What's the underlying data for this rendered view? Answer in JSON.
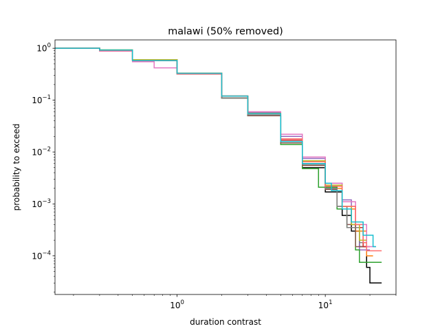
{
  "chart_data": {
    "type": "line",
    "title": "malawi (50% removed)",
    "xlabel": "duration contrast",
    "ylabel": "probability to exceed",
    "xscale": "log",
    "yscale": "log",
    "xlim": [
      0.15,
      30
    ],
    "ylim": [
      1.8e-05,
      1.45
    ],
    "x_ticks": [
      {
        "value": 1,
        "base": "10",
        "exp": "0"
      },
      {
        "value": 10,
        "base": "10",
        "exp": "1"
      }
    ],
    "y_ticks": [
      {
        "value": 1,
        "base": "10",
        "exp": "0"
      },
      {
        "value": 0.1,
        "base": "10",
        "exp": "−1"
      },
      {
        "value": 0.01,
        "base": "10",
        "exp": "−2"
      },
      {
        "value": 0.001,
        "base": "10",
        "exp": "−3"
      },
      {
        "value": 0.0001,
        "base": "10",
        "exp": "−4"
      }
    ],
    "grid": false,
    "series": [
      {
        "name": "series-1",
        "color": "#000000",
        "x": [
          0.15,
          0.3,
          0.5,
          1.0,
          2.0,
          3.0,
          5.0,
          7.0,
          10.0,
          13.0,
          15.0,
          17.0,
          19.0,
          20.0,
          24.0
        ],
        "y": [
          1.0,
          0.9,
          0.6,
          0.33,
          0.11,
          0.05,
          0.015,
          0.005,
          0.0017,
          0.0006,
          0.0003,
          0.00015,
          6e-05,
          3e-05,
          3e-05
        ]
      },
      {
        "name": "series-2",
        "color": "#9467bd",
        "x": [
          0.15,
          0.3,
          0.5,
          1.0,
          2.0,
          3.0,
          5.0,
          7.0,
          10.0,
          13.0,
          15.0,
          17.0,
          20.0
        ],
        "y": [
          1.0,
          0.92,
          0.58,
          0.32,
          0.12,
          0.058,
          0.02,
          0.0075,
          0.0025,
          0.0012,
          0.0004,
          0.00013,
          0.00013
        ]
      },
      {
        "name": "series-3",
        "color": "#2ca02c",
        "x": [
          0.15,
          0.3,
          0.5,
          1.0,
          2.0,
          3.0,
          5.0,
          7.0,
          9.0,
          12.0,
          14.0,
          16.0,
          17.0,
          24.0
        ],
        "y": [
          1.0,
          0.93,
          0.6,
          0.33,
          0.11,
          0.05,
          0.014,
          0.0048,
          0.0021,
          0.0008,
          0.00035,
          0.00013,
          7.5e-05,
          7.5e-05
        ]
      },
      {
        "name": "series-4",
        "color": "#ff7f0e",
        "x": [
          0.15,
          0.3,
          0.5,
          1.0,
          2.0,
          3.0,
          5.0,
          7.0,
          10.0,
          13.0,
          16.0,
          19.0,
          21.0
        ],
        "y": [
          1.0,
          0.92,
          0.6,
          0.33,
          0.12,
          0.055,
          0.018,
          0.0065,
          0.002,
          0.0008,
          0.0003,
          0.0001,
          0.0001
        ]
      },
      {
        "name": "series-5",
        "color": "#d62728",
        "x": [
          0.15,
          0.3,
          0.5,
          1.0,
          2.0,
          3.0,
          5.0,
          7.0,
          10.0,
          13.0,
          16.0,
          18.0,
          20.0
        ],
        "y": [
          1.0,
          0.9,
          0.59,
          0.33,
          0.12,
          0.055,
          0.017,
          0.006,
          0.0022,
          0.0009,
          0.00035,
          0.00015,
          0.00015
        ]
      },
      {
        "name": "series-6",
        "color": "#8c564b",
        "x": [
          0.15,
          0.3,
          0.5,
          1.0,
          2.0,
          3.0,
          5.0,
          7.0,
          10.0,
          12.0,
          14.0,
          16.0,
          18.0
        ],
        "y": [
          1.0,
          0.9,
          0.58,
          0.32,
          0.11,
          0.05,
          0.015,
          0.0055,
          0.0019,
          0.0009,
          0.0004,
          0.00015,
          0.00015
        ]
      },
      {
        "name": "series-7",
        "color": "#e377c2",
        "x": [
          0.15,
          0.3,
          0.5,
          0.7,
          1.0,
          2.0,
          3.0,
          5.0,
          7.0,
          10.0,
          13.0,
          16.0,
          19.0,
          22.0
        ],
        "y": [
          1.0,
          0.88,
          0.55,
          0.42,
          0.32,
          0.12,
          0.06,
          0.022,
          0.008,
          0.0025,
          0.0011,
          0.0004,
          0.00015,
          0.00015
        ]
      },
      {
        "name": "series-8",
        "color": "#7f7f7f",
        "x": [
          0.15,
          0.3,
          0.5,
          1.0,
          2.0,
          3.0,
          5.0,
          7.0,
          10.0,
          12.0,
          14.0,
          17.0,
          19.0
        ],
        "y": [
          1.0,
          0.91,
          0.58,
          0.32,
          0.11,
          0.052,
          0.016,
          0.0058,
          0.002,
          0.0009,
          0.00035,
          0.00018,
          0.00018
        ]
      },
      {
        "name": "series-9",
        "color": "#bcbd22",
        "x": [
          0.15,
          0.3,
          0.5,
          1.0,
          2.0,
          3.0,
          5.0,
          7.0,
          10.0,
          13.0,
          15.0,
          17.0,
          19.0
        ],
        "y": [
          1.0,
          0.92,
          0.6,
          0.33,
          0.12,
          0.056,
          0.018,
          0.0068,
          0.0023,
          0.0009,
          0.0004,
          0.0002,
          0.0002
        ]
      },
      {
        "name": "series-10",
        "color": "#ff6e6e",
        "x": [
          0.15,
          0.3,
          0.5,
          1.0,
          2.0,
          3.0,
          5.0,
          7.0,
          10.0,
          13.0,
          16.0,
          18.0,
          19.0,
          24.0
        ],
        "y": [
          1.0,
          0.9,
          0.58,
          0.32,
          0.12,
          0.055,
          0.018,
          0.0065,
          0.0022,
          0.0009,
          0.0004,
          0.00018,
          0.000125,
          0.000125
        ]
      },
      {
        "name": "series-11",
        "color": "#17becf",
        "x": [
          0.15,
          0.3,
          0.5,
          1.0,
          2.0,
          3.0,
          5.0,
          7.0,
          10.0,
          11.0,
          13.0,
          15.0,
          18.0,
          21.0,
          22.0
        ],
        "y": [
          1.0,
          0.92,
          0.58,
          0.33,
          0.12,
          0.055,
          0.016,
          0.006,
          0.0025,
          0.0018,
          0.0008,
          0.00045,
          0.00025,
          0.00015,
          0.00015
        ]
      }
    ]
  }
}
